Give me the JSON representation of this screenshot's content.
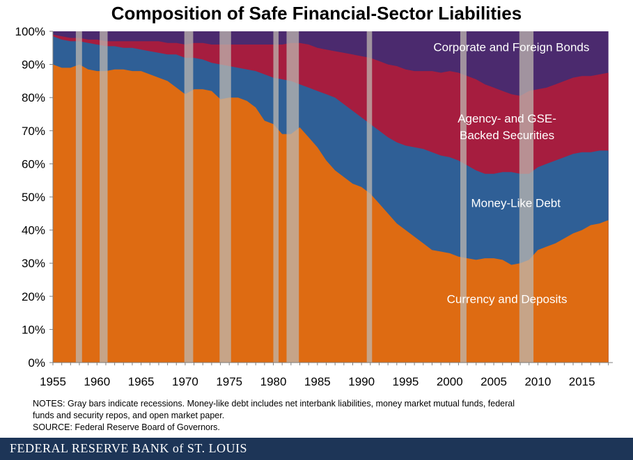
{
  "chart_data": {
    "type": "area",
    "stacked": true,
    "percent": true,
    "title": "Composition of Safe Financial-Sector Liabilities",
    "xlabel": "",
    "ylabel": "",
    "xlim": [
      1955,
      2018.5
    ],
    "ylim": [
      0,
      100
    ],
    "x_ticks": [
      1955,
      1960,
      1965,
      1970,
      1975,
      1980,
      1985,
      1990,
      1995,
      2000,
      2005,
      2010,
      2015
    ],
    "y_ticks": [
      0,
      10,
      20,
      30,
      40,
      50,
      60,
      70,
      80,
      90,
      100
    ],
    "y_tick_labels": [
      "0%",
      "10%",
      "20%",
      "30%",
      "40%",
      "50%",
      "60%",
      "70%",
      "80%",
      "90%",
      "100%"
    ],
    "x": [
      1955,
      1956,
      1957,
      1958,
      1959,
      1960,
      1961,
      1962,
      1963,
      1964,
      1965,
      1966,
      1967,
      1968,
      1969,
      1970,
      1971,
      1972,
      1973,
      1974,
      1975,
      1976,
      1977,
      1978,
      1979,
      1980,
      1981,
      1982,
      1983,
      1984,
      1985,
      1986,
      1987,
      1988,
      1989,
      1990,
      1991,
      1992,
      1993,
      1994,
      1995,
      1996,
      1997,
      1998,
      1999,
      2000,
      2001,
      2002,
      2003,
      2004,
      2005,
      2006,
      2007,
      2008,
      2009,
      2010,
      2011,
      2012,
      2013,
      2014,
      2015,
      2016,
      2017,
      2018
    ],
    "cumulative": true,
    "series": [
      {
        "name": "Currency and Deposits",
        "color": "#de6b12",
        "values": [
          90,
          89,
          89,
          90,
          88.5,
          88,
          88,
          88.5,
          88.5,
          88,
          88,
          87,
          86,
          85,
          83,
          81,
          82.5,
          82.5,
          82,
          79.5,
          80,
          80,
          79,
          77,
          73,
          72,
          69,
          69,
          71,
          68,
          65,
          61,
          58,
          56,
          54,
          53,
          51,
          48,
          45,
          42,
          40,
          38,
          36,
          34,
          33.5,
          33,
          32,
          31.5,
          31,
          31.5,
          31.5,
          31,
          29.5,
          30,
          31,
          34,
          35,
          36,
          37.5,
          39,
          40,
          41.5,
          42,
          43
        ]
      },
      {
        "name": "Money-Like Debt",
        "color": "#2f5f96",
        "values": [
          98.5,
          97.5,
          97,
          97,
          96.5,
          96,
          95.5,
          95.5,
          95,
          95,
          94.5,
          94,
          93.5,
          93,
          93,
          92,
          92,
          91.5,
          90.5,
          90,
          89.5,
          89,
          88.5,
          88,
          87,
          86,
          85.5,
          85,
          84,
          83,
          82,
          81,
          80,
          78,
          76,
          74,
          72,
          70,
          68,
          66.5,
          65.5,
          65,
          64.5,
          63.5,
          62.5,
          62,
          61,
          59.5,
          58,
          57,
          57,
          57.5,
          57.5,
          57,
          57,
          59,
          60,
          61,
          62,
          63,
          63.5,
          63.5,
          64,
          64
        ]
      },
      {
        "name": "Agency- and GSE-Backed Securities",
        "color": "#a61d3f",
        "values": [
          99,
          98.5,
          98,
          98,
          97.5,
          97.5,
          97,
          97,
          97,
          97,
          97,
          97,
          97,
          96.5,
          96.5,
          96,
          96.5,
          96.5,
          96,
          96,
          96,
          96,
          96,
          96,
          96,
          96,
          96,
          96.5,
          96.5,
          96,
          95,
          94.5,
          94,
          93.5,
          93,
          92.5,
          92,
          91,
          90,
          89.5,
          88.5,
          88,
          88,
          88,
          87.5,
          88,
          87.5,
          86.5,
          85.5,
          84,
          83,
          82,
          81,
          80.5,
          82,
          82.5,
          83,
          84,
          85,
          86,
          86.5,
          86.5,
          87,
          87.5
        ]
      },
      {
        "name": "Corporate and Foreign Bonds",
        "color": "#4b2a6e",
        "values": [
          100,
          100,
          100,
          100,
          100,
          100,
          100,
          100,
          100,
          100,
          100,
          100,
          100,
          100,
          100,
          100,
          100,
          100,
          100,
          100,
          100,
          100,
          100,
          100,
          100,
          100,
          100,
          100,
          100,
          100,
          100,
          100,
          100,
          100,
          100,
          100,
          100,
          100,
          100,
          100,
          100,
          100,
          100,
          100,
          100,
          100,
          100,
          100,
          100,
          100,
          100,
          100,
          100,
          100,
          100,
          100,
          100,
          100,
          100,
          100,
          100,
          100,
          100,
          100
        ]
      }
    ],
    "annotations": [
      {
        "key": "corporate",
        "lines": [
          "Corporate  and Foreign Bonds"
        ],
        "x": 2007,
        "y": 94
      },
      {
        "key": "agency",
        "lines": [
          "Agency- and GSE-",
          "Backed Securities"
        ],
        "x": 2006.5,
        "y": 72.5
      },
      {
        "key": "money",
        "lines": [
          "Money-Like Debt"
        ],
        "x": 2007.5,
        "y": 47
      },
      {
        "key": "currency",
        "lines": [
          "Currency and Deposits"
        ],
        "x": 2006.5,
        "y": 18
      }
    ],
    "recessions": [
      [
        1957.6,
        1958.3
      ],
      [
        1960.3,
        1961.2
      ],
      [
        1969.9,
        1970.9
      ],
      [
        1973.9,
        1975.2
      ],
      [
        1980.0,
        1980.6
      ],
      [
        1981.5,
        1982.9
      ],
      [
        1990.6,
        1991.2
      ],
      [
        2001.2,
        2001.9
      ],
      [
        2007.9,
        2009.5
      ]
    ],
    "recession_color": "#bdb7b0",
    "grid": false,
    "legend": "none"
  },
  "notes": {
    "line1": "NOTES: Gray bars indicate recessions. Money-like debt includes net interbank liabilities, money market mutual funds, federal",
    "line2": "funds and security repos, and open market paper.",
    "source": "SOURCE: Federal Reserve Board of Governors."
  },
  "footer": {
    "brand": "FEDERAL RESERVE BANK of ST. LOUIS",
    "color": "#1d3557"
  }
}
